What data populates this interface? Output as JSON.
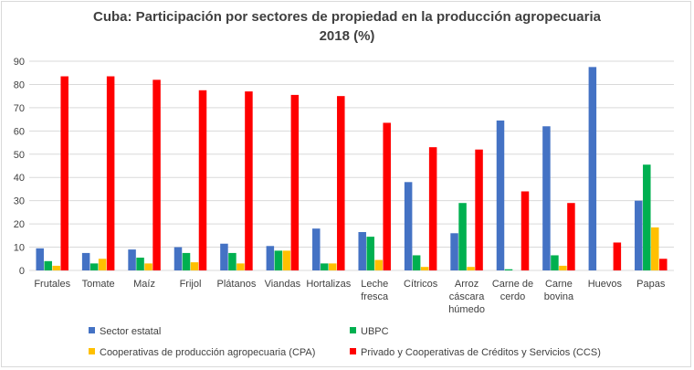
{
  "chart_data": {
    "type": "bar",
    "title": "Cuba: Participación por sectores de propiedad en la producción agropecuaria",
    "subtitle": "2018 (%)",
    "categories": [
      [
        "Frutales"
      ],
      [
        "Tomate"
      ],
      [
        "Maíz"
      ],
      [
        "Frijol"
      ],
      [
        "Plátanos"
      ],
      [
        "Viandas"
      ],
      [
        "Hortalizas"
      ],
      [
        "Leche",
        "fresca"
      ],
      [
        "Cítricos"
      ],
      [
        "Arroz",
        "cáscara",
        "húmedo"
      ],
      [
        "Carne de",
        "cerdo"
      ],
      [
        "Carne",
        "bovina"
      ],
      [
        "Huevos"
      ],
      [
        "Papas"
      ]
    ],
    "series": [
      {
        "name": "Sector estatal",
        "color": "#4472c4",
        "values": [
          9.5,
          7.5,
          9,
          10,
          11.5,
          10.5,
          18,
          16.5,
          38,
          16,
          64.5,
          62,
          87.5,
          30
        ]
      },
      {
        "name": "UBPC",
        "color": "#00b050",
        "values": [
          4,
          3,
          5.5,
          7.5,
          7.5,
          8.5,
          3,
          14.5,
          6.5,
          29,
          0.5,
          6.5,
          0,
          45.5
        ]
      },
      {
        "name": "Cooperativas de producción agropecuaria (CPA)",
        "color": "#ffc000",
        "values": [
          2,
          5,
          3,
          3.5,
          3,
          8.5,
          3,
          4.5,
          1.5,
          1.5,
          0,
          2,
          0,
          18.5
        ]
      },
      {
        "name": "Privado y Cooperativas de Créditos y Servicios (CCS)",
        "color": "#ff0000",
        "values": [
          83.5,
          83.5,
          82,
          77.5,
          77,
          75.5,
          75,
          63.5,
          53,
          52,
          34,
          29,
          12,
          5
        ]
      }
    ],
    "yticks": [
      0,
      10,
      20,
      30,
      40,
      50,
      60,
      70,
      80,
      90
    ],
    "ylim": [
      0,
      90
    ],
    "grid": true,
    "legend": "bottom"
  }
}
